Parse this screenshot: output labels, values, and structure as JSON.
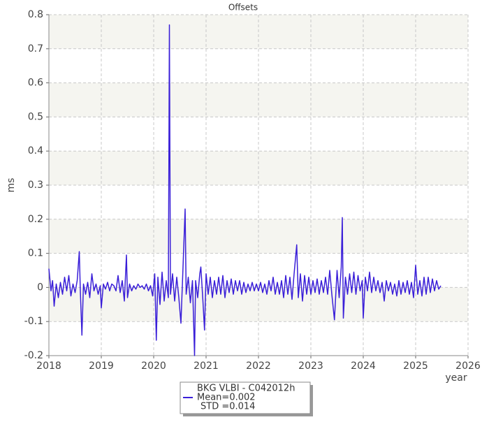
{
  "chart_data": {
    "type": "line",
    "title": "Offsets",
    "xlabel": "year",
    "ylabel": "ms",
    "xlim": [
      2018,
      2026
    ],
    "xticks": [
      2018,
      2019,
      2020,
      2021,
      2022,
      2023,
      2024,
      2025,
      2026
    ],
    "ylim": [
      -0.2,
      0.8
    ],
    "yticks": [
      -0.2,
      -0.1,
      0,
      0.1,
      0.2,
      0.3,
      0.4,
      0.5,
      0.6,
      0.7,
      0.8
    ],
    "grid": true,
    "annotations": [
      "Mean=0.002",
      "STD =0.014"
    ],
    "x": [
      2018,
      2018.04,
      2018.07,
      2018.1,
      2018.14,
      2018.18,
      2018.22,
      2018.26,
      2018.3,
      2018.34,
      2018.38,
      2018.42,
      2018.46,
      2018.5,
      2018.54,
      2018.58,
      2018.6,
      2018.63,
      2018.66,
      2018.7,
      2018.74,
      2018.78,
      2018.82,
      2018.86,
      2018.9,
      2018.94,
      2018.98,
      2019,
      2019.04,
      2019.08,
      2019.12,
      2019.16,
      2019.2,
      2019.24,
      2019.28,
      2019.32,
      2019.36,
      2019.4,
      2019.44,
      2019.48,
      2019.5,
      2019.54,
      2019.58,
      2019.62,
      2019.66,
      2019.7,
      2019.74,
      2019.78,
      2019.82,
      2019.86,
      2019.9,
      2019.94,
      2019.98,
      2020.02,
      2020.05,
      2020.08,
      2020.12,
      2020.16,
      2020.2,
      2020.24,
      2020.28,
      2020.3,
      2020.32,
      2020.36,
      2020.4,
      2020.44,
      2020.48,
      2020.52,
      2020.56,
      2020.6,
      2020.62,
      2020.66,
      2020.7,
      2020.74,
      2020.78,
      2020.8,
      2020.84,
      2020.88,
      2020.9,
      2020.94,
      2020.97,
      2021,
      2021.04,
      2021.08,
      2021.12,
      2021.16,
      2021.2,
      2021.24,
      2021.28,
      2021.32,
      2021.36,
      2021.4,
      2021.44,
      2021.48,
      2021.52,
      2021.56,
      2021.6,
      2021.64,
      2021.68,
      2021.72,
      2021.76,
      2021.8,
      2021.84,
      2021.88,
      2021.92,
      2021.96,
      2022,
      2022.04,
      2022.08,
      2022.12,
      2022.16,
      2022.2,
      2022.24,
      2022.28,
      2022.32,
      2022.36,
      2022.4,
      2022.44,
      2022.48,
      2022.52,
      2022.56,
      2022.6,
      2022.64,
      2022.68,
      2022.73,
      2022.76,
      2022.8,
      2022.84,
      2022.88,
      2022.92,
      2022.96,
      2023,
      2023.04,
      2023.08,
      2023.12,
      2023.16,
      2023.2,
      2023.24,
      2023.28,
      2023.32,
      2023.36,
      2023.4,
      2023.45,
      2023.5,
      2023.54,
      2023.58,
      2023.6,
      2023.62,
      2023.66,
      2023.7,
      2023.74,
      2023.78,
      2023.82,
      2023.86,
      2023.9,
      2023.94,
      2023.98,
      2024,
      2024.04,
      2024.08,
      2024.12,
      2024.16,
      2024.2,
      2024.24,
      2024.28,
      2024.32,
      2024.36,
      2024.4,
      2024.44,
      2024.48,
      2024.52,
      2024.56,
      2024.6,
      2024.64,
      2024.68,
      2024.72,
      2024.76,
      2024.8,
      2024.84,
      2024.88,
      2024.92,
      2024.96,
      2025,
      2025.04,
      2025.08,
      2025.12,
      2025.16,
      2025.2,
      2025.24,
      2025.28,
      2025.32,
      2025.36,
      2025.4,
      2025.44,
      2025.48
    ],
    "series": [
      {
        "name": "BKG VLBI - C042012h",
        "color": "#3a1fd8",
        "values": [
          0.055,
          -0.01,
          0.02,
          -0.055,
          0.01,
          -0.03,
          0.015,
          -0.02,
          0.03,
          -0.01,
          0.035,
          -0.025,
          0.01,
          -0.015,
          0.02,
          0.105,
          -0.01,
          -0.14,
          0.01,
          -0.02,
          0.015,
          -0.03,
          0.04,
          -0.01,
          0.01,
          -0.02,
          0.005,
          -0.06,
          0.01,
          -0.005,
          0.015,
          -0.01,
          0.01,
          0.005,
          -0.01,
          0.035,
          -0.015,
          0.02,
          -0.04,
          0.095,
          -0.03,
          0.01,
          -0.01,
          0.005,
          -0.005,
          0.01,
          0,
          0.005,
          -0.005,
          0.01,
          -0.01,
          0.005,
          -0.025,
          0.04,
          -0.155,
          0.03,
          -0.05,
          0.045,
          -0.04,
          0.02,
          -0.03,
          0.77,
          -0.02,
          0.04,
          -0.04,
          0.03,
          -0.03,
          -0.105,
          0.06,
          0.23,
          -0.02,
          0.03,
          -0.045,
          0.02,
          -0.2,
          0.02,
          -0.03,
          0.04,
          0.06,
          -0.04,
          -0.125,
          0.04,
          -0.02,
          0.03,
          -0.03,
          0.02,
          -0.02,
          0.03,
          -0.02,
          0.035,
          -0.03,
          0.02,
          -0.015,
          0.025,
          -0.02,
          0.02,
          -0.01,
          0.02,
          -0.02,
          0.015,
          -0.015,
          0.01,
          -0.01,
          0.015,
          -0.01,
          0.01,
          -0.01,
          0.015,
          -0.015,
          0.01,
          -0.02,
          0.02,
          -0.01,
          0.03,
          -0.02,
          0.015,
          -0.02,
          0.02,
          -0.03,
          0.035,
          -0.02,
          0.03,
          -0.035,
          0.04,
          0.125,
          -0.03,
          0.04,
          -0.04,
          0.035,
          -0.02,
          0.03,
          -0.02,
          0.02,
          -0.015,
          0.025,
          -0.02,
          0.02,
          -0.015,
          0.03,
          -0.02,
          0.05,
          -0.02,
          -0.095,
          0.05,
          -0.03,
          0.06,
          0.205,
          -0.09,
          0.03,
          -0.02,
          0.04,
          -0.015,
          0.045,
          -0.02,
          0.035,
          -0.01,
          0.02,
          -0.09,
          0.03,
          -0.01,
          0.045,
          -0.015,
          0.03,
          -0.01,
          0.02,
          -0.015,
          0.015,
          -0.04,
          0.02,
          -0.01,
          0.015,
          -0.02,
          0.01,
          -0.025,
          0.02,
          -0.02,
          0.015,
          -0.015,
          0.02,
          -0.02,
          0.015,
          -0.03,
          0.065,
          -0.02,
          0.02,
          -0.025,
          0.03,
          -0.02,
          0.03,
          -0.015,
          0.025,
          -0.01,
          0.02,
          -0.005,
          0.005
        ]
      }
    ]
  }
}
